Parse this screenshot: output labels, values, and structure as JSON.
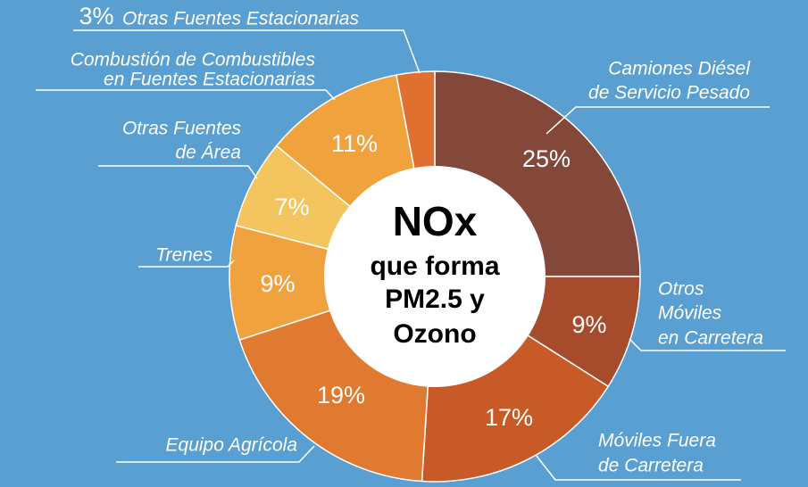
{
  "chart_data": {
    "type": "donut",
    "categories": [
      [
        "Camiones Diésel",
        "de Servicio Pesado"
      ],
      [
        "Otros",
        "Móviles",
        "en Carretera"
      ],
      [
        "Móviles Fuera",
        "de Carretera"
      ],
      [
        "Equipo Agrícola"
      ],
      [
        "Trenes"
      ],
      [
        "Otras Fuentes",
        "de Área"
      ],
      [
        "Combustión de Combustibles",
        "en Fuentes Estacionarias"
      ],
      [
        "Otras Fuentes Estacionarias"
      ]
    ],
    "values": [
      25,
      9,
      17,
      19,
      9,
      7,
      11,
      3
    ],
    "value_labels": [
      "25%",
      "9%",
      "17%",
      "19%",
      "9%",
      "7%",
      "11%",
      "3%"
    ],
    "colors": [
      "#84483a",
      "#a64b2c",
      "#c85a28",
      "#df7a30",
      "#efa23e",
      "#f4c55f",
      "#f0a23c",
      "#e07030"
    ],
    "center_text": [
      "NOx",
      "que forma",
      "PM2.5 y",
      "Ozono"
    ]
  }
}
